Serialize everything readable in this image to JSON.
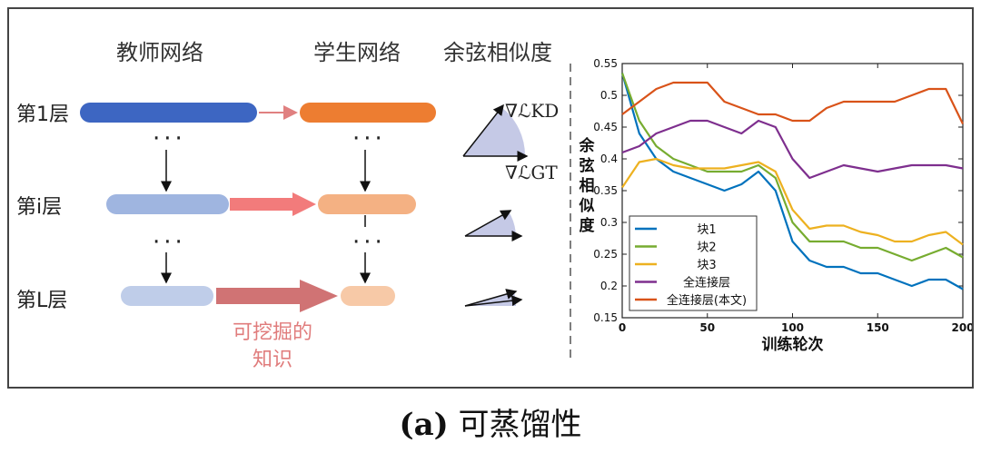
{
  "headers": {
    "teacher": "教师网络",
    "student": "学生网络",
    "cosine": "余弦相似度"
  },
  "layers": {
    "first": "第1层",
    "middle": "第i层",
    "last": "第L层"
  },
  "dots": "···",
  "knowledge_label": [
    "可挖掘的",
    "知识"
  ],
  "gradient_labels": {
    "kd": "∇ℒKD",
    "gt": "∇ℒGT"
  },
  "colors": {
    "teacher_first": "#3d66c2",
    "student_first": "#ed7d31",
    "teacher_light": "#9fb5e0",
    "student_light": "#f4b183",
    "arrow_pink": "#f27b7b",
    "arrow_dark_pink": "#d07374",
    "series_block1": "#0072bd",
    "series_block2": "#77ac30",
    "series_block3": "#edb120",
    "series_fc": "#7e2f8e",
    "series_fc_ours": "#d95319"
  },
  "chart_data": {
    "type": "line",
    "xlabel": "训练轮次",
    "ylabel": "余弦相似度",
    "xlim": [
      0,
      200
    ],
    "ylim": [
      0.15,
      0.55
    ],
    "xticks": [
      0,
      50,
      100,
      150,
      200
    ],
    "yticks": [
      0.15,
      0.2,
      0.25,
      0.3,
      0.35,
      0.4,
      0.45,
      0.5,
      0.55
    ],
    "legend_position": "bottom-left",
    "x": [
      0,
      10,
      20,
      30,
      40,
      50,
      60,
      70,
      80,
      90,
      100,
      110,
      120,
      130,
      140,
      150,
      160,
      170,
      180,
      190,
      200
    ],
    "series": [
      {
        "name": "块1",
        "color": "#0072bd",
        "values": [
          0.535,
          0.44,
          0.4,
          0.38,
          0.37,
          0.36,
          0.35,
          0.36,
          0.38,
          0.35,
          0.27,
          0.24,
          0.23,
          0.23,
          0.22,
          0.22,
          0.21,
          0.2,
          0.21,
          0.21,
          0.195
        ]
      },
      {
        "name": "块2",
        "color": "#77ac30",
        "values": [
          0.535,
          0.46,
          0.42,
          0.4,
          0.39,
          0.38,
          0.38,
          0.38,
          0.39,
          0.37,
          0.3,
          0.27,
          0.27,
          0.27,
          0.26,
          0.26,
          0.25,
          0.24,
          0.25,
          0.26,
          0.245
        ]
      },
      {
        "name": "块3",
        "color": "#edb120",
        "values": [
          0.355,
          0.395,
          0.4,
          0.39,
          0.385,
          0.385,
          0.385,
          0.39,
          0.395,
          0.38,
          0.32,
          0.29,
          0.295,
          0.295,
          0.285,
          0.28,
          0.27,
          0.27,
          0.28,
          0.285,
          0.265
        ]
      },
      {
        "name": "全连接层",
        "color": "#7e2f8e",
        "values": [
          0.41,
          0.42,
          0.44,
          0.45,
          0.46,
          0.46,
          0.45,
          0.44,
          0.46,
          0.45,
          0.4,
          0.37,
          0.38,
          0.39,
          0.385,
          0.38,
          0.385,
          0.39,
          0.39,
          0.39,
          0.385
        ]
      },
      {
        "name": "全连接层(本文)",
        "color": "#d95319",
        "values": [
          0.47,
          0.49,
          0.51,
          0.52,
          0.52,
          0.52,
          0.49,
          0.48,
          0.47,
          0.47,
          0.46,
          0.46,
          0.48,
          0.49,
          0.49,
          0.49,
          0.49,
          0.5,
          0.51,
          0.51,
          0.455
        ]
      }
    ]
  },
  "caption": {
    "label": "(a)",
    "text": "可蒸馏性"
  }
}
